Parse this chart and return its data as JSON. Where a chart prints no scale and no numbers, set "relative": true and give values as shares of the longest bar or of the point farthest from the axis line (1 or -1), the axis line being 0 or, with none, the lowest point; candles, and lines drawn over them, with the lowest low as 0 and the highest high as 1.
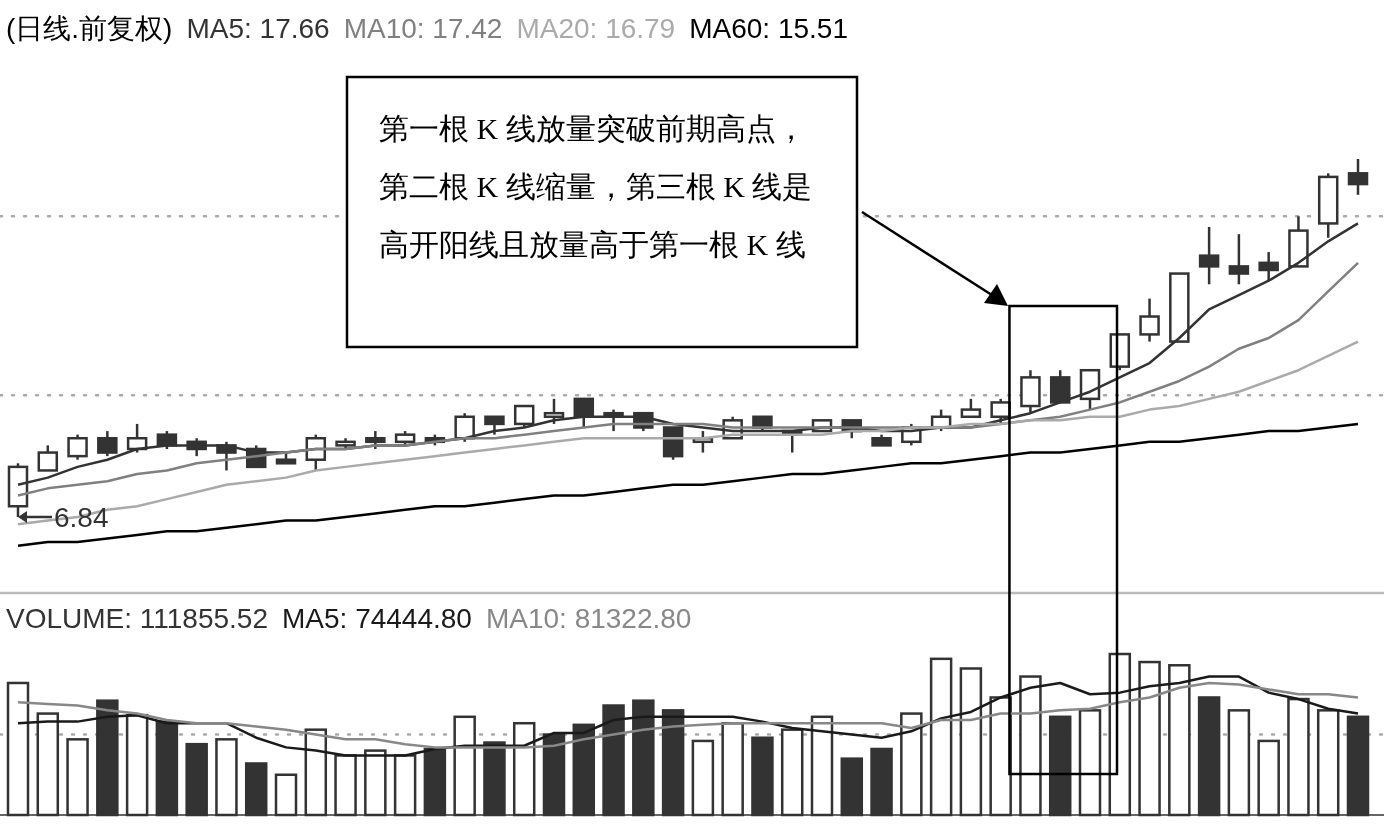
{
  "chart_data": [
    {
      "type": "candlestick",
      "title": "(日线.前复权)",
      "relative": true,
      "legend": "top left",
      "color": "#333333",
      "categories": [
        null,
        null,
        null,
        null,
        null,
        null,
        null,
        null,
        null,
        null,
        null,
        null,
        null,
        null,
        null,
        null,
        null,
        null,
        null,
        null,
        null,
        null,
        null,
        null,
        null,
        null,
        null,
        null,
        null,
        null,
        null,
        null,
        null,
        null,
        null,
        null,
        null,
        null,
        null,
        null,
        null,
        null,
        null,
        null,
        null,
        null
      ],
      "ohlc": [
        [
          0.03,
          0.15,
          0,
          0.14
        ],
        [
          0.13,
          0.2,
          0.13,
          0.18
        ],
        [
          0.17,
          0.23,
          0.16,
          0.22
        ],
        [
          0.22,
          0.24,
          0.17,
          0.18
        ],
        [
          0.19,
          0.26,
          0.18,
          0.22
        ],
        [
          0.23,
          0.24,
          0.19,
          0.2
        ],
        [
          0.21,
          0.22,
          0.17,
          0.19
        ],
        [
          0.2,
          0.21,
          0.13,
          0.18
        ],
        [
          0.19,
          0.2,
          0.14,
          0.14
        ],
        [
          0.16,
          0.18,
          0.15,
          0.15
        ],
        [
          0.16,
          0.23,
          0.13,
          0.22
        ],
        [
          0.2,
          0.22,
          0.19,
          0.21
        ],
        [
          0.22,
          0.24,
          0.19,
          0.21
        ],
        [
          0.21,
          0.24,
          0.2,
          0.23
        ],
        [
          0.22,
          0.23,
          0.2,
          0.21
        ],
        [
          0.22,
          0.29,
          0.21,
          0.28
        ],
        [
          0.28,
          0.28,
          0.23,
          0.26
        ],
        [
          0.26,
          0.31,
          0.25,
          0.31
        ],
        [
          0.28,
          0.33,
          0.26,
          0.29
        ],
        [
          0.33,
          0.33,
          0.25,
          0.28
        ],
        [
          0.29,
          0.3,
          0.24,
          0.28
        ],
        [
          0.29,
          0.29,
          0.24,
          0.25
        ],
        [
          0.25,
          0.25,
          0.16,
          0.17
        ],
        [
          0.21,
          0.24,
          0.18,
          0.22
        ],
        [
          0.22,
          0.28,
          0.22,
          0.27
        ],
        [
          0.28,
          0.28,
          0.24,
          0.25
        ],
        [
          0.24,
          0.24,
          0.18,
          0.23
        ],
        [
          0.24,
          0.27,
          0.24,
          0.27
        ],
        [
          0.27,
          0.27,
          0.22,
          0.24
        ],
        [
          0.22,
          0.23,
          0.2,
          0.2
        ],
        [
          0.21,
          0.26,
          0.2,
          0.25
        ],
        [
          0.25,
          0.3,
          0.24,
          0.28
        ],
        [
          0.28,
          0.33,
          0.28,
          0.3
        ],
        [
          0.28,
          0.33,
          0.26,
          0.32
        ],
        [
          0.31,
          0.41,
          0.29,
          0.39
        ],
        [
          0.39,
          0.41,
          0.32,
          0.32
        ],
        [
          0.33,
          0.41,
          0.3,
          0.41
        ],
        [
          0.42,
          0.51,
          0.41,
          0.51
        ],
        [
          0.51,
          0.61,
          0.49,
          0.56
        ],
        [
          0.49,
          0.68,
          0.49,
          0.68
        ],
        [
          0.73,
          0.81,
          0.65,
          0.7
        ],
        [
          0.7,
          0.79,
          0.65,
          0.68
        ],
        [
          0.71,
          0.74,
          0.66,
          0.69
        ],
        [
          0.7,
          0.84,
          0.7,
          0.8
        ],
        [
          0.82,
          0.96,
          0.78,
          0.95
        ],
        [
          0.96,
          1,
          0.9,
          0.93
        ]
      ],
      "series": [
        {
          "name": "MA5: 17.66",
          "type": "line",
          "color": "#333333",
          "values": [
            0.09,
            0.11,
            0.14,
            0.16,
            0.19,
            0.2,
            0.2,
            0.2,
            0.18,
            0.18,
            0.19,
            0.19,
            0.2,
            0.2,
            0.21,
            0.22,
            0.24,
            0.25,
            0.27,
            0.28,
            0.28,
            0.28,
            0.26,
            0.25,
            0.24,
            0.24,
            0.24,
            0.25,
            0.25,
            0.24,
            0.24,
            0.25,
            0.25,
            0.27,
            0.29,
            0.32,
            0.35,
            0.39,
            0.43,
            0.5,
            0.58,
            0.62,
            0.66,
            0.71,
            0.77,
            0.82
          ]
        },
        {
          "name": "MA10: 17.42",
          "type": "line",
          "color": "#808080",
          "values": [
            0.06,
            0.08,
            0.09,
            0.1,
            0.12,
            0.13,
            0.15,
            0.16,
            0.17,
            0.18,
            0.19,
            0.19,
            0.2,
            0.2,
            0.21,
            0.22,
            0.22,
            0.23,
            0.24,
            0.25,
            0.26,
            0.26,
            0.26,
            0.26,
            0.25,
            0.25,
            0.25,
            0.25,
            0.25,
            0.25,
            0.25,
            0.25,
            0.25,
            0.26,
            0.27,
            0.28,
            0.3,
            0.32,
            0.35,
            0.38,
            0.42,
            0.47,
            0.5,
            0.55,
            0.63,
            0.71
          ]
        },
        {
          "name": "MA20: 16.79",
          "type": "line",
          "color": "#aaaaaa",
          "values": [
            -0.02,
            -0.01,
            0.0,
            0.02,
            0.03,
            0.05,
            0.07,
            0.09,
            0.1,
            0.11,
            0.13,
            0.14,
            0.15,
            0.16,
            0.17,
            0.18,
            0.19,
            0.2,
            0.21,
            0.22,
            0.22,
            0.22,
            0.22,
            0.22,
            0.23,
            0.23,
            0.23,
            0.23,
            0.24,
            0.24,
            0.25,
            0.25,
            0.26,
            0.26,
            0.27,
            0.27,
            0.28,
            0.28,
            0.3,
            0.31,
            0.33,
            0.35,
            0.38,
            0.41,
            0.45,
            0.49
          ]
        },
        {
          "name": "MA60: 15.51",
          "type": "line",
          "color": "#000000",
          "values": [
            -0.08,
            -0.07,
            -0.07,
            -0.06,
            -0.05,
            -0.04,
            -0.04,
            -0.03,
            -0.02,
            -0.01,
            -0.01,
            0.0,
            0.01,
            0.02,
            0.03,
            0.03,
            0.04,
            0.05,
            0.06,
            0.06,
            0.07,
            0.08,
            0.09,
            0.09,
            0.1,
            0.11,
            0.12,
            0.12,
            0.13,
            0.14,
            0.15,
            0.15,
            0.16,
            0.17,
            0.18,
            0.18,
            0.19,
            0.2,
            0.21,
            0.21,
            0.22,
            0.23,
            0.24,
            0.24,
            0.25,
            0.26
          ]
        }
      ],
      "ref_lines": [
        {
          "axis": "y",
          "value": 0.34,
          "color": "#aaaaaa",
          "line_style": "dotted"
        },
        {
          "axis": "y",
          "value": 0.84,
          "color": "#aaaaaa",
          "line_style": "dotted"
        }
      ],
      "annotations": [
        "6.84",
        "第一根 K 线放量突破前期高点，第二根 K 线缩量，第三根 K 线是高开阳线且放量高于第一根 K 线"
      ]
    },
    {
      "type": "bar",
      "relative": true,
      "categories": [
        null,
        null,
        null,
        null,
        null,
        null,
        null,
        null,
        null,
        null,
        null,
        null,
        null,
        null,
        null,
        null,
        null,
        null,
        null,
        null,
        null,
        null,
        null,
        null,
        null,
        null,
        null,
        null,
        null,
        null,
        null,
        null,
        null,
        null,
        null,
        null,
        null,
        null,
        null,
        null,
        null,
        null,
        null,
        null,
        null,
        null
      ],
      "series": [
        {
          "name": "VOLUME: 111855.52",
          "color": "#333333",
          "values": [
            0.82,
            0.63,
            0.47,
            0.71,
            0.62,
            0.58,
            0.44,
            0.47,
            0.32,
            0.25,
            0.53,
            0.37,
            0.4,
            0.37,
            0.41,
            0.61,
            0.45,
            0.57,
            0.5,
            0.56,
            0.68,
            0.71,
            0.65,
            0.46,
            0.57,
            0.48,
            0.53,
            0.61,
            0.35,
            0.41,
            0.63,
            0.97,
            0.91,
            0.73,
            0.86,
            0.61,
            0.65,
            1,
            0.95,
            0.93,
            0.73,
            0.65,
            0.46,
            0.72,
            0.65,
            0.61
          ],
          "colors": [
            "#ffffff",
            "#ffffff",
            "#ffffff",
            "#333333",
            "#ffffff",
            "#333333",
            "#333333",
            "#ffffff",
            "#333333",
            "#ffffff",
            "#ffffff",
            "#ffffff",
            "#ffffff",
            "#ffffff",
            "#333333",
            "#ffffff",
            "#333333",
            "#ffffff",
            "#333333",
            "#333333",
            "#333333",
            "#333333",
            "#333333",
            "#ffffff",
            "#ffffff",
            "#333333",
            "#ffffff",
            "#ffffff",
            "#333333",
            "#333333",
            "#ffffff",
            "#ffffff",
            "#ffffff",
            "#ffffff",
            "#ffffff",
            "#333333",
            "#ffffff",
            "#ffffff",
            "#ffffff",
            "#ffffff",
            "#333333",
            "#ffffff",
            "#ffffff",
            "#ffffff",
            "#ffffff",
            "#333333"
          ]
        },
        {
          "name": "MA5: 74444.80",
          "type": "line",
          "color": "#1a1a1a",
          "values": [
            0.57,
            0.58,
            0.58,
            0.61,
            0.62,
            0.57,
            0.57,
            0.57,
            0.48,
            0.42,
            0.4,
            0.37,
            0.37,
            0.37,
            0.41,
            0.43,
            0.43,
            0.43,
            0.51,
            0.51,
            0.59,
            0.61,
            0.61,
            0.61,
            0.61,
            0.58,
            0.54,
            0.52,
            0.5,
            0.48,
            0.52,
            0.6,
            0.64,
            0.73,
            0.79,
            0.82,
            0.75,
            0.76,
            0.8,
            0.82,
            0.86,
            0.86,
            0.76,
            0.72,
            0.66,
            0.63
          ]
        },
        {
          "name": "MA10: 81322.80",
          "type": "line",
          "color": "#888888",
          "values": [
            0.7,
            0.69,
            0.68,
            0.65,
            0.63,
            0.59,
            0.57,
            0.57,
            0.55,
            0.53,
            0.5,
            0.47,
            0.47,
            0.44,
            0.42,
            0.42,
            0.42,
            0.42,
            0.43,
            0.47,
            0.5,
            0.53,
            0.55,
            0.56,
            0.57,
            0.57,
            0.57,
            0.57,
            0.57,
            0.57,
            0.54,
            0.59,
            0.59,
            0.63,
            0.63,
            0.65,
            0.66,
            0.7,
            0.73,
            0.79,
            0.82,
            0.81,
            0.78,
            0.75,
            0.75,
            0.73
          ]
        }
      ],
      "ref_lines": [
        {
          "axis": "y",
          "value": 0.5,
          "color": "#aaaaaa",
          "line_style": "dotted"
        }
      ]
    }
  ]
}
